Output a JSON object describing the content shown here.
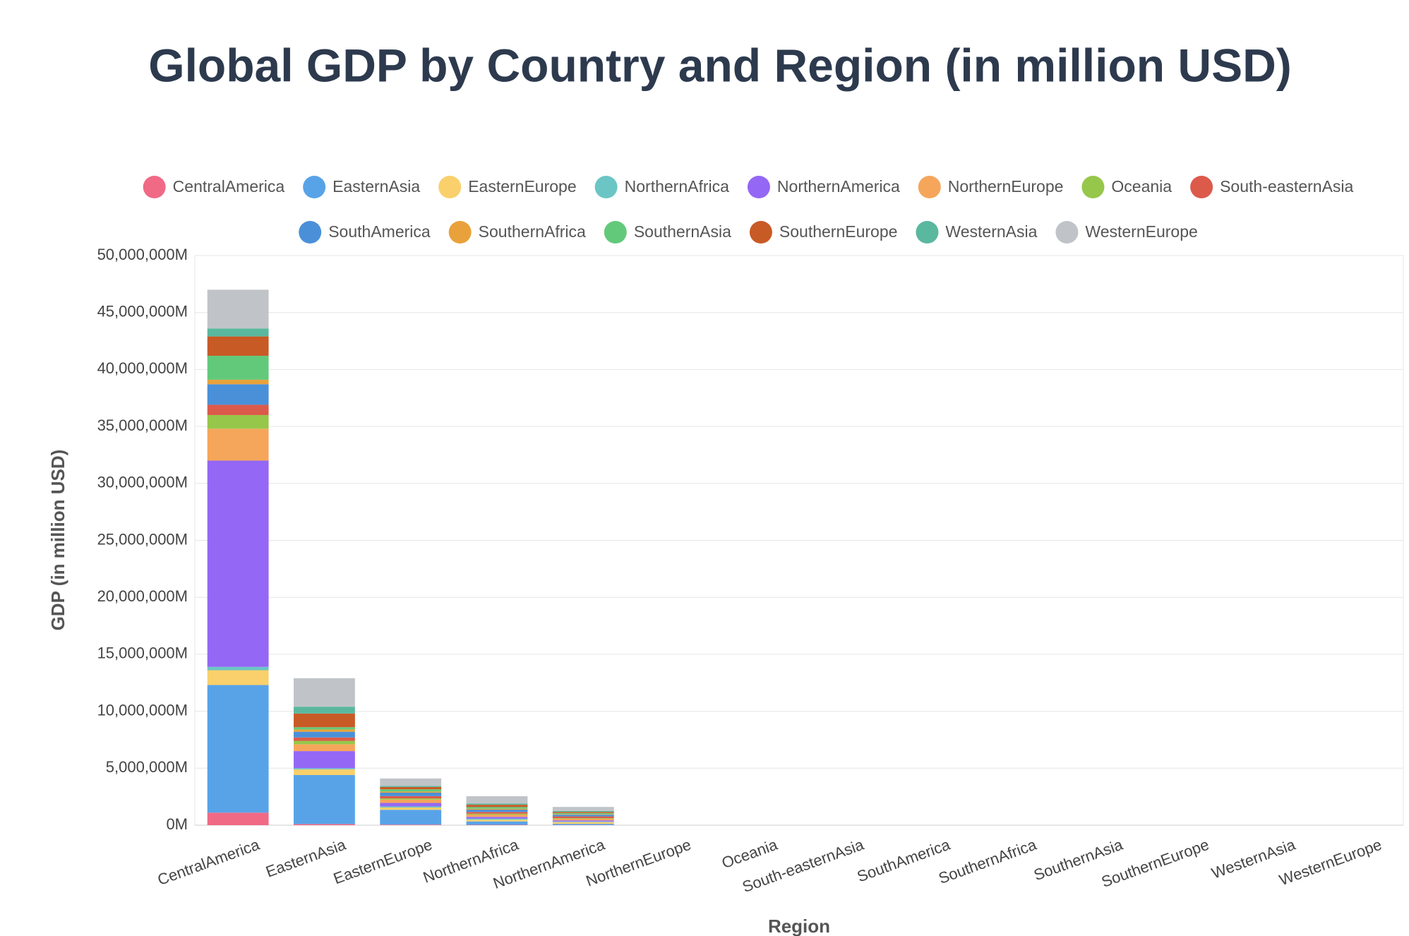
{
  "chart_data": {
    "type": "bar",
    "stacked": true,
    "title": "Global GDP by Country and Region (in million USD)",
    "x_label": "Region",
    "y_label": "GDP (in million USD)",
    "categories": [
      "CentralAmerica",
      "EasternAsia",
      "EasternEurope",
      "NorthernAfrica",
      "NorthernAmerica",
      "NorthernEurope",
      "Oceania",
      "South-easternAsia",
      "SouthAmerica",
      "SouthernAfrica",
      "SouthernAsia",
      "SouthernEurope",
      "WesternAsia",
      "WesternEurope"
    ],
    "series": [
      {
        "name": "CentralAmerica",
        "color": "#f06a86",
        "values": [
          1100000,
          100000,
          50000,
          30000,
          20000,
          0,
          0,
          0,
          0,
          0,
          0,
          0,
          0,
          0
        ]
      },
      {
        "name": "EasternAsia",
        "color": "#58a3e8",
        "values": [
          11200000,
          4300000,
          1300000,
          300000,
          100000,
          0,
          0,
          0,
          0,
          0,
          0,
          0,
          0,
          0
        ]
      },
      {
        "name": "EasternEurope",
        "color": "#f9d06b",
        "values": [
          1300000,
          500000,
          200000,
          150000,
          150000,
          0,
          0,
          0,
          0,
          0,
          0,
          0,
          0,
          0
        ]
      },
      {
        "name": "NorthernAfrica",
        "color": "#6cc5c5",
        "values": [
          300000,
          100000,
          100000,
          100000,
          50000,
          0,
          0,
          0,
          0,
          0,
          0,
          0,
          0,
          0
        ]
      },
      {
        "name": "NorthernAmerica",
        "color": "#9467f5",
        "values": [
          18100000,
          1500000,
          300000,
          150000,
          100000,
          0,
          0,
          0,
          0,
          0,
          0,
          0,
          0,
          0
        ]
      },
      {
        "name": "NorthernEurope",
        "color": "#f5a65b",
        "values": [
          2800000,
          600000,
          300000,
          200000,
          150000,
          0,
          0,
          0,
          0,
          0,
          0,
          0,
          0,
          0
        ]
      },
      {
        "name": "Oceania",
        "color": "#96c74a",
        "values": [
          1200000,
          300000,
          100000,
          80000,
          50000,
          0,
          0,
          0,
          0,
          0,
          0,
          0,
          0,
          0
        ]
      },
      {
        "name": "South-easternAsia",
        "color": "#dc5a4a",
        "values": [
          900000,
          300000,
          200000,
          150000,
          150000,
          0,
          0,
          0,
          0,
          0,
          0,
          0,
          0,
          0
        ]
      },
      {
        "name": "SouthAmerica",
        "color": "#4a90d9",
        "values": [
          1800000,
          500000,
          300000,
          200000,
          150000,
          0,
          0,
          0,
          0,
          0,
          0,
          0,
          0,
          0
        ]
      },
      {
        "name": "SouthernAfrica",
        "color": "#e9a23b",
        "values": [
          400000,
          200000,
          100000,
          80000,
          50000,
          0,
          0,
          0,
          0,
          0,
          0,
          0,
          0,
          0
        ]
      },
      {
        "name": "SouthernAsia",
        "color": "#63c97a",
        "values": [
          2100000,
          200000,
          200000,
          150000,
          100000,
          0,
          0,
          0,
          0,
          0,
          0,
          0,
          0,
          0
        ]
      },
      {
        "name": "SouthernEurope",
        "color": "#c85a26",
        "values": [
          1700000,
          1200000,
          200000,
          200000,
          100000,
          0,
          0,
          0,
          0,
          0,
          0,
          0,
          0,
          0
        ]
      },
      {
        "name": "WesternAsia",
        "color": "#5ab89e",
        "values": [
          700000,
          600000,
          100000,
          100000,
          80000,
          0,
          0,
          0,
          0,
          0,
          0,
          0,
          0,
          0
        ]
      },
      {
        "name": "WesternEurope",
        "color": "#c0c4c8",
        "values": [
          3400000,
          2500000,
          650000,
          650000,
          350000,
          0,
          0,
          0,
          0,
          0,
          0,
          0,
          0,
          0
        ]
      }
    ],
    "ylim": [
      0,
      50000000
    ],
    "yticks": [
      {
        "value": 0,
        "label": "0M"
      },
      {
        "value": 5000000,
        "label": "5,000,000M"
      },
      {
        "value": 10000000,
        "label": "10,000,000M"
      },
      {
        "value": 15000000,
        "label": "15,000,000M"
      },
      {
        "value": 20000000,
        "label": "20,000,000M"
      },
      {
        "value": 25000000,
        "label": "25,000,000M"
      },
      {
        "value": 30000000,
        "label": "30,000,000M"
      },
      {
        "value": 35000000,
        "label": "35,000,000M"
      },
      {
        "value": 40000000,
        "label": "40,000,000M"
      },
      {
        "value": 45000000,
        "label": "45,000,000M"
      },
      {
        "value": 50000000,
        "label": "50,000,000M"
      }
    ],
    "grid": true,
    "legend": "top"
  }
}
